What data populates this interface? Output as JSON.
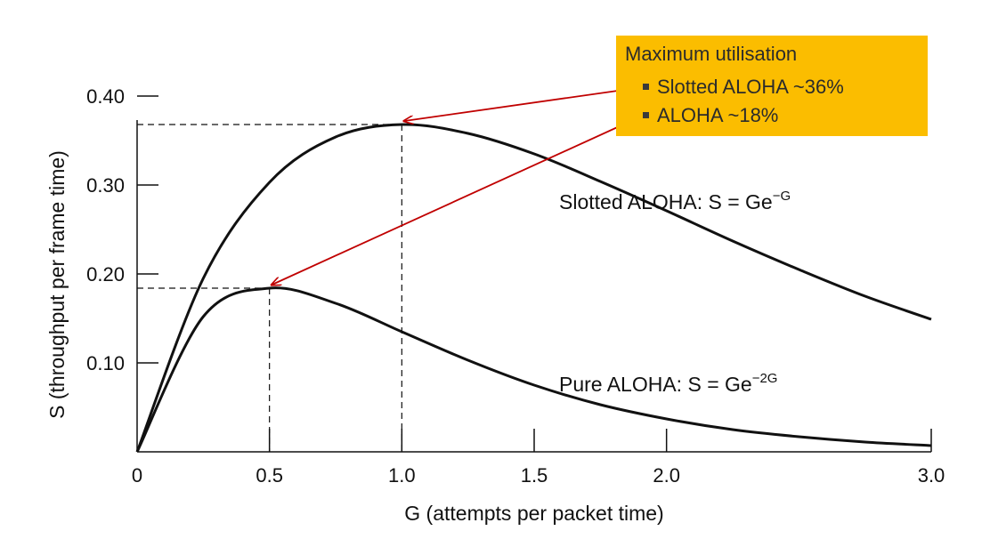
{
  "chart_data": {
    "type": "line",
    "title": "",
    "xlabel": "G (attempts per packet time)",
    "ylabel": "S (throughput per frame time)",
    "xlim": [
      0,
      3.0
    ],
    "ylim": [
      0,
      0.5
    ],
    "x_ticks": [
      "0",
      "0.5",
      "1.0",
      "1.5",
      "2.0",
      "3.0"
    ],
    "x_tick_values": [
      0,
      0.5,
      1.0,
      1.5,
      2.0,
      3.0
    ],
    "y_ticks": [
      "0.10",
      "0.20",
      "0.30",
      "0.40"
    ],
    "y_tick_values": [
      0.1,
      0.2,
      0.3,
      0.4
    ],
    "series": [
      {
        "formula_prefix": "Slotted ALOHA: S = Ge",
        "formula_exp": "−G",
        "x": [
          0,
          0.25,
          0.5,
          0.75,
          1.0,
          1.25,
          1.5,
          1.75,
          2.0,
          2.25,
          2.5,
          2.75,
          3.0
        ],
        "y": [
          0,
          0.195,
          0.303,
          0.354,
          0.368,
          0.358,
          0.335,
          0.304,
          0.271,
          0.237,
          0.205,
          0.175,
          0.149
        ]
      },
      {
        "formula_prefix": "Pure ALOHA: S = Ge",
        "formula_exp": "−2G",
        "x": [
          0,
          0.25,
          0.5,
          0.75,
          1.0,
          1.25,
          1.5,
          1.75,
          2.0,
          2.25,
          2.5,
          2.75,
          3.0
        ],
        "y": [
          0,
          0.152,
          0.184,
          0.167,
          0.135,
          0.103,
          0.075,
          0.053,
          0.037,
          0.025,
          0.017,
          0.011,
          0.007
        ]
      }
    ],
    "maxima": [
      {
        "x": 1.0,
        "y": 0.368
      },
      {
        "x": 0.5,
        "y": 0.184
      }
    ],
    "colors": {
      "curve": "#111111",
      "arrow": "#c00000",
      "callout_bg": "#fbbd00"
    }
  },
  "callout": {
    "title": "Maximum utilisation",
    "items": [
      "Slotted ALOHA ~36%",
      "ALOHA ~18%"
    ]
  }
}
